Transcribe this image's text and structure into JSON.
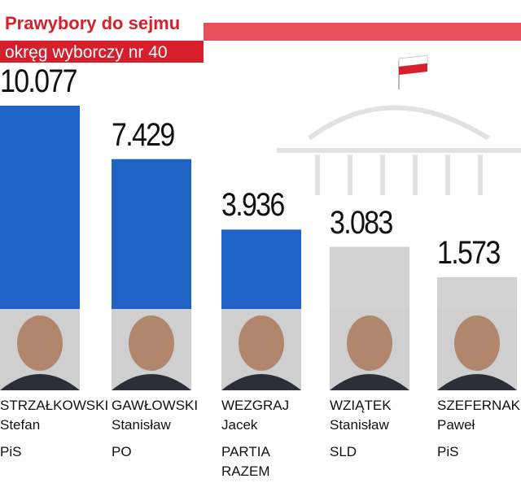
{
  "chart_data": {
    "type": "bar",
    "title": "Prawybory do sejmu",
    "subtitle": "okręg wyborczy nr 40",
    "categories": [
      "STRZAŁKOWSKI",
      "GAWŁOWSKI",
      "WEZGRAJ",
      "WZIĄTEK",
      "SZEFERNAKER"
    ],
    "first_names": [
      "Stefan",
      "Stanisław",
      "Jacek",
      "Stanisław",
      "Paweł"
    ],
    "parties": [
      "PiS",
      "PO",
      "PARTIA RAZEM",
      "SLD",
      "PiS"
    ],
    "values": [
      10077,
      7429,
      3936,
      3083,
      1573
    ],
    "value_labels": [
      "10.077",
      "7.429",
      "3.936",
      "3.083",
      "1.573"
    ],
    "colors": [
      "#1f63c4",
      "#1f63c4",
      "#1f63c4",
      "#d2d2d2",
      "#d2d2d2"
    ]
  }
}
